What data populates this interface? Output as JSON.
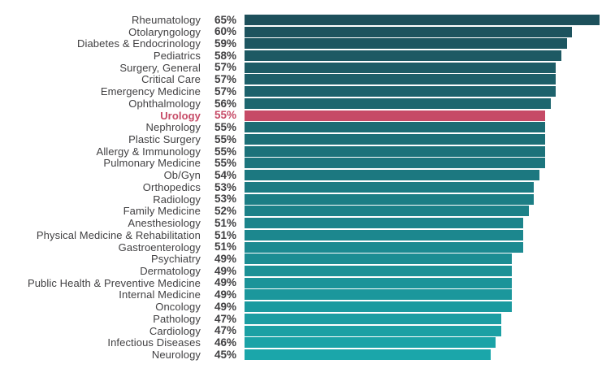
{
  "chart_data": {
    "type": "bar",
    "orientation": "horizontal",
    "title": "",
    "xlabel": "",
    "ylabel": "",
    "xlim": [
      0,
      65
    ],
    "grid": false,
    "legend": false,
    "categories": [
      "Rheumatology",
      "Otolaryngology",
      "Diabetes & Endocrinology",
      "Pediatrics",
      "Surgery, General",
      "Critical Care",
      "Emergency Medicine",
      "Ophthalmology",
      "Urology",
      "Nephrology",
      "Plastic Surgery",
      "Allergy & Immunology",
      "Pulmonary Medicine",
      "Ob/Gyn",
      "Orthopedics",
      "Radiology",
      "Family Medicine",
      "Anesthesiology",
      "Physical Medicine & Rehabilitation",
      "Gastroenterology",
      "Psychiatry",
      "Dermatology",
      "Public Health & Preventive Medicine",
      "Internal Medicine",
      "Oncology",
      "Pathology",
      "Cardiology",
      "Infectious Diseases",
      "Neurology"
    ],
    "values": [
      65,
      60,
      59,
      58,
      57,
      57,
      57,
      56,
      55,
      55,
      55,
      55,
      55,
      54,
      53,
      53,
      52,
      51,
      51,
      51,
      49,
      49,
      49,
      49,
      49,
      47,
      47,
      46,
      45
    ],
    "value_labels": [
      "65%",
      "60%",
      "59%",
      "58%",
      "57%",
      "57%",
      "57%",
      "56%",
      "55%",
      "55%",
      "55%",
      "55%",
      "55%",
      "54%",
      "53%",
      "53%",
      "52%",
      "51%",
      "51%",
      "51%",
      "49%",
      "49%",
      "49%",
      "49%",
      "49%",
      "47%",
      "47%",
      "46%",
      "45%"
    ],
    "highlight_category": "Urology",
    "colors": {
      "bar_gradient_top": "#1D505B",
      "bar_gradient_bottom": "#1BA6AA",
      "highlight_bar": "#C64A66",
      "highlight_text": "#C64A66",
      "label_text": "#414042",
      "value_text": "#414042",
      "background": "#FFFFFF"
    }
  }
}
